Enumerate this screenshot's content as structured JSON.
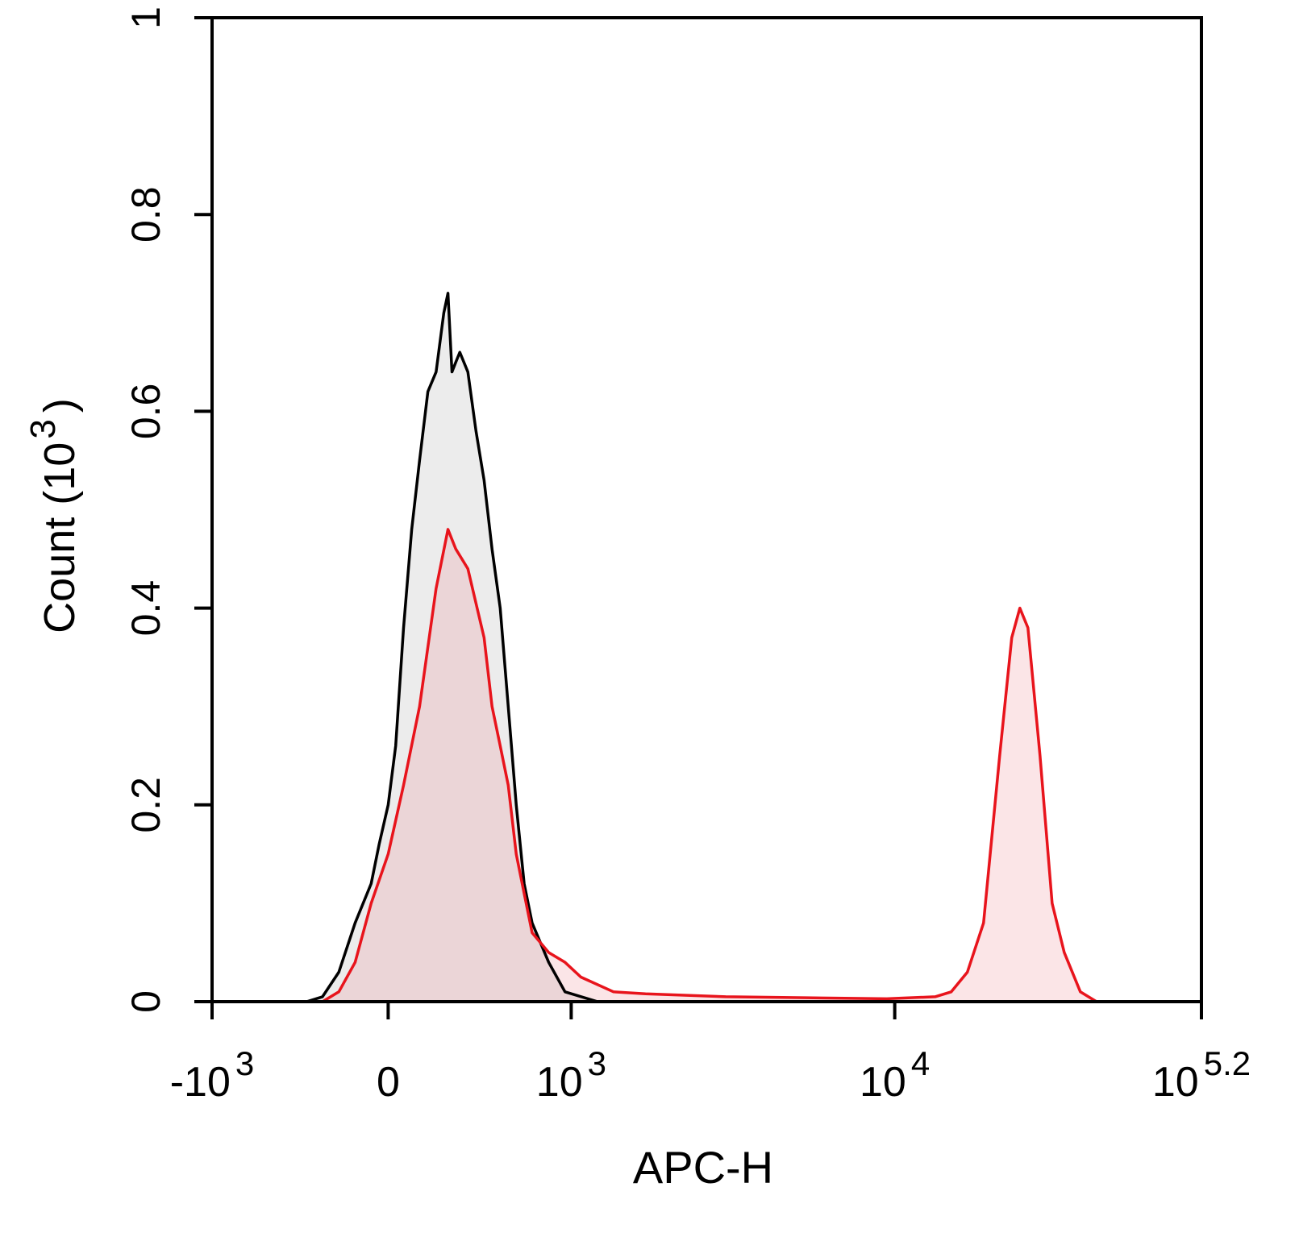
{
  "chart_data": {
    "type": "histogram-overlay",
    "xlabel": "APC-H",
    "ylabel": {
      "text": "Count  (10",
      "exponent": "3",
      "suffix": ")"
    },
    "xscale": "biexponential",
    "xlim": [
      -1000,
      158489
    ],
    "xticks": [
      {
        "value": -1000,
        "label": "-10",
        "exponent": "3"
      },
      {
        "value": 0,
        "label": "0"
      },
      {
        "value": 1000,
        "label": "10",
        "exponent": "3"
      },
      {
        "value": 10000,
        "label": "10",
        "exponent": "4"
      },
      {
        "value": 158489,
        "label": "10",
        "exponent": "5.2"
      }
    ],
    "ylim": [
      0,
      1
    ],
    "yticks": [
      0,
      0.2,
      0.4,
      0.6,
      0.8,
      1
    ],
    "series": [
      {
        "color": "#000000",
        "fill": "#ececec",
        "x": [
          -227,
          -169,
          -119,
          -76,
          -38,
          -20,
          0,
          16,
          33,
          51,
          69,
          89,
          110,
          131,
          143,
          155,
          167,
          180,
          208,
          239,
          273,
          310,
          352,
          398,
          449,
          505,
          568,
          723,
          915,
          1208
        ],
        "values": [
          0,
          0.005,
          0.03,
          0.08,
          0.12,
          0.16,
          0.2,
          0.26,
          0.38,
          0.48,
          0.55,
          0.62,
          0.64,
          0.7,
          0.72,
          0.64,
          0.65,
          0.66,
          0.64,
          0.58,
          0.53,
          0.46,
          0.4,
          0.3,
          0.2,
          0.12,
          0.08,
          0.04,
          0.01,
          0
        ]
      },
      {
        "color": "#e8141c",
        "fill": "rgba(235,110,120,0.18)",
        "x": [
          -227,
          -169,
          -119,
          -76,
          -38,
          0,
          33,
          69,
          110,
          143,
          167,
          208,
          273,
          310,
          352,
          398,
          449,
          505,
          568,
          723,
          915,
          1072,
          1354,
          1701,
          3010,
          5334,
          9450,
          14390,
          16640,
          19240,
          22260,
          25740,
          28700,
          30870,
          33200,
          37020,
          41290,
          46050,
          53250,
          61600
        ],
        "values": [
          0,
          0,
          0.01,
          0.04,
          0.1,
          0.15,
          0.22,
          0.3,
          0.42,
          0.48,
          0.46,
          0.44,
          0.37,
          0.3,
          0.26,
          0.22,
          0.15,
          0.11,
          0.07,
          0.05,
          0.04,
          0.025,
          0.01,
          0.008,
          0.005,
          0.004,
          0.003,
          0.005,
          0.01,
          0.03,
          0.08,
          0.25,
          0.37,
          0.4,
          0.38,
          0.25,
          0.1,
          0.05,
          0.01,
          0
        ]
      }
    ]
  }
}
